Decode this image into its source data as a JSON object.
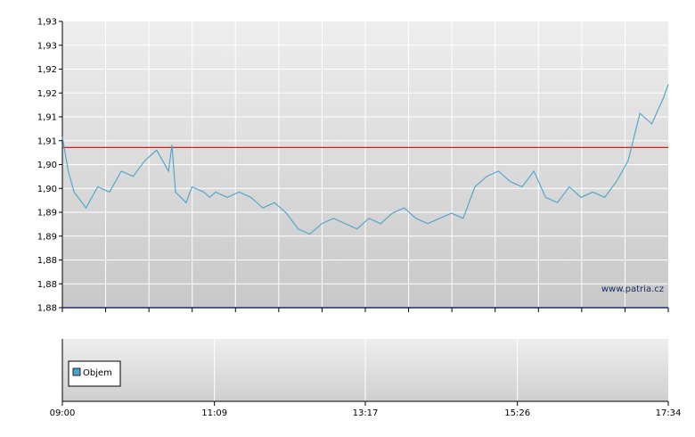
{
  "watermark": "www.patria.cz",
  "colors": {
    "price_line": "#4aa3c9",
    "reference_line": "#cc2222",
    "legend_swatch": "#4aa3c9",
    "grid": "#ffffff",
    "axis": "#000000"
  },
  "chart_data": [
    {
      "type": "line",
      "title": "",
      "xlabel": "",
      "ylabel": "",
      "x_tick_labels": [
        "09:00",
        "11:09",
        "13:17",
        "15:26",
        "17:34"
      ],
      "y_tick_labels": [
        "1,93",
        "1,93",
        "1,92",
        "1,92",
        "1,91",
        "1,91",
        "1,90",
        "1,90",
        "1,89",
        "1,89",
        "1,88",
        "1,88",
        "1,88"
      ],
      "ylim": [
        1.878,
        1.9325
      ],
      "xlim": [
        "09:00",
        "17:34"
      ],
      "grid": true,
      "reference_line": {
        "y": 1.9085
      },
      "series": [
        {
          "name": "",
          "x": [
            "09:00",
            "09:05",
            "09:10",
            "09:20",
            "09:30",
            "09:40",
            "09:50",
            "10:00",
            "10:10",
            "10:20",
            "10:30",
            "10:33",
            "10:36",
            "10:45",
            "10:50",
            "11:00",
            "11:05",
            "11:10",
            "11:20",
            "11:30",
            "11:40",
            "11:50",
            "12:00",
            "12:10",
            "12:20",
            "12:30",
            "12:40",
            "12:50",
            "13:00",
            "13:10",
            "13:20",
            "13:30",
            "13:40",
            "13:50",
            "14:00",
            "14:10",
            "14:20",
            "14:30",
            "14:40",
            "14:45",
            "14:50",
            "15:00",
            "15:10",
            "15:20",
            "15:30",
            "15:40",
            "15:50",
            "16:00",
            "16:10",
            "16:20",
            "16:30",
            "16:40",
            "16:50",
            "17:00",
            "17:10",
            "17:20",
            "17:30",
            "17:34"
          ],
          "values": [
            1.9105,
            1.904,
            1.9,
            1.897,
            1.901,
            1.9,
            1.904,
            1.903,
            1.906,
            1.908,
            1.904,
            1.909,
            1.9,
            1.898,
            1.901,
            1.9,
            1.899,
            1.9,
            1.899,
            1.9,
            1.899,
            1.897,
            1.898,
            1.896,
            1.893,
            1.892,
            1.894,
            1.895,
            1.894,
            1.893,
            1.895,
            1.894,
            1.896,
            1.897,
            1.895,
            1.894,
            1.895,
            1.896,
            1.895,
            1.898,
            1.901,
            1.903,
            1.904,
            1.902,
            1.901,
            1.904,
            1.899,
            1.898,
            1.901,
            1.899,
            1.9,
            1.899,
            1.902,
            1.906,
            1.915,
            1.913,
            1.918,
            1.9205
          ]
        }
      ]
    },
    {
      "type": "bar",
      "title": "",
      "categories": [],
      "series": [
        {
          "name": "Objem",
          "values": []
        }
      ],
      "legend": "left"
    }
  ]
}
